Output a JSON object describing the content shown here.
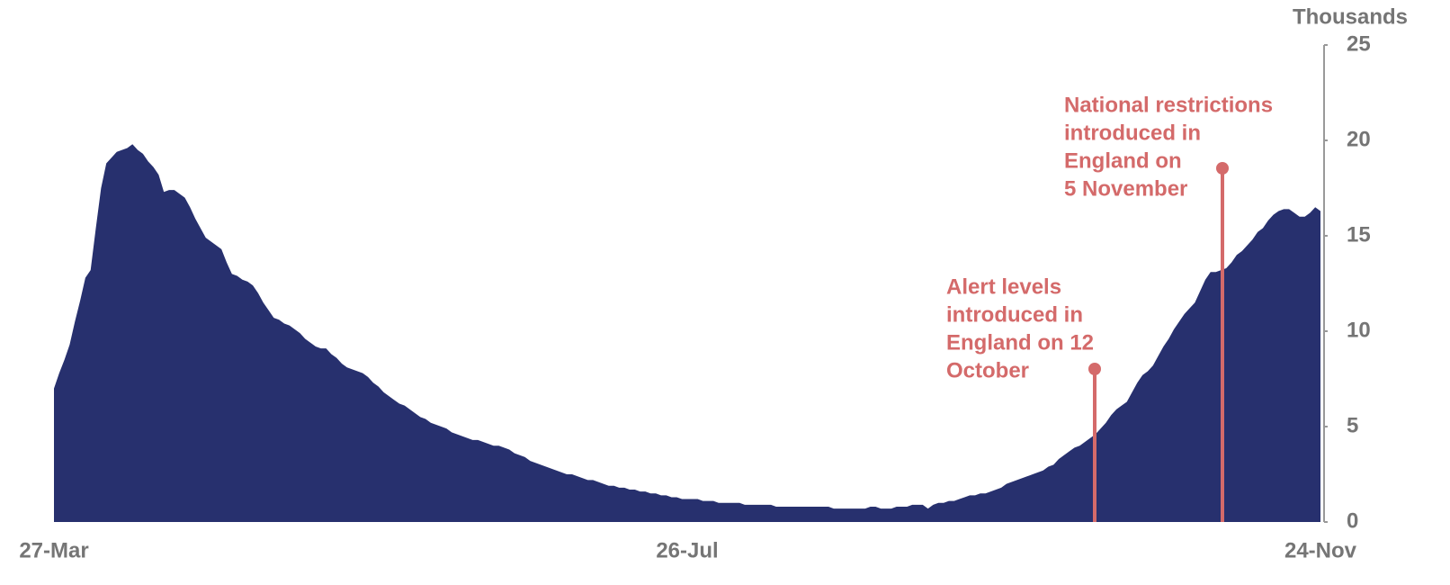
{
  "chart_data": {
    "type": "area",
    "y_label": "Thousands",
    "color": "#27306e",
    "annotation_color": "#d46a6a",
    "categories": [
      "27-Mar",
      null,
      null,
      null,
      null,
      null,
      null,
      null,
      null,
      null,
      null,
      null,
      null,
      null,
      null,
      null,
      null,
      null,
      null,
      null,
      null,
      null,
      null,
      null,
      null,
      null,
      null,
      null,
      null,
      null,
      null,
      null,
      null,
      null,
      null,
      null,
      null,
      null,
      null,
      null,
      null,
      null,
      null,
      null,
      null,
      null,
      null,
      null,
      null,
      null,
      null,
      null,
      null,
      null,
      null,
      null,
      null,
      null,
      null,
      null,
      null,
      null,
      null,
      null,
      null,
      null,
      null,
      null,
      null,
      null,
      null,
      null,
      null,
      null,
      null,
      null,
      null,
      null,
      null,
      null,
      null,
      null,
      null,
      null,
      null,
      null,
      null,
      null,
      null,
      null,
      null,
      null,
      null,
      null,
      null,
      null,
      null,
      null,
      null,
      null,
      null,
      null,
      null,
      null,
      null,
      null,
      null,
      null,
      null,
      null,
      null,
      null,
      null,
      null,
      null,
      null,
      null,
      null,
      null,
      null,
      null,
      "26-Jul",
      null,
      null,
      null,
      null,
      null,
      null,
      null,
      null,
      null,
      null,
      null,
      null,
      null,
      null,
      null,
      null,
      null,
      null,
      null,
      null,
      null,
      null,
      null,
      null,
      null,
      null,
      null,
      null,
      null,
      null,
      null,
      null,
      null,
      null,
      null,
      null,
      null,
      null,
      null,
      null,
      null,
      null,
      null,
      null,
      null,
      null,
      null,
      null,
      null,
      null,
      null,
      null,
      null,
      null,
      null,
      null,
      null,
      null,
      null,
      null,
      null,
      null,
      null,
      null,
      null,
      null,
      null,
      null,
      null,
      null,
      null,
      null,
      null,
      null,
      null,
      null,
      null,
      null,
      null,
      null,
      null,
      null,
      null,
      null,
      null,
      null,
      null,
      null,
      null,
      null,
      null,
      null,
      null,
      null,
      null,
      null,
      null,
      null,
      null,
      null,
      null,
      null,
      null,
      null,
      null,
      null,
      null,
      null,
      null,
      null,
      null,
      null,
      null,
      null,
      null,
      null,
      null,
      null,
      null,
      null,
      "24-Nov"
    ],
    "values": [
      7.0,
      7.8,
      8.5,
      9.3,
      10.5,
      11.6,
      12.8,
      13.2,
      15.4,
      17.5,
      18.8,
      19.1,
      19.4,
      19.5,
      19.6,
      19.8,
      19.5,
      19.3,
      18.9,
      18.6,
      18.2,
      17.3,
      17.4,
      17.4,
      17.2,
      17.0,
      16.5,
      15.9,
      15.4,
      14.9,
      14.7,
      14.5,
      14.3,
      13.6,
      13.0,
      12.9,
      12.7,
      12.6,
      12.4,
      12.0,
      11.5,
      11.1,
      10.7,
      10.6,
      10.4,
      10.3,
      10.1,
      9.9,
      9.6,
      9.4,
      9.2,
      9.1,
      9.1,
      8.8,
      8.6,
      8.3,
      8.1,
      8.0,
      7.9,
      7.8,
      7.6,
      7.3,
      7.1,
      6.8,
      6.6,
      6.4,
      6.2,
      6.1,
      5.9,
      5.7,
      5.5,
      5.4,
      5.2,
      5.1,
      5.0,
      4.9,
      4.7,
      4.6,
      4.5,
      4.4,
      4.3,
      4.3,
      4.2,
      4.1,
      4.0,
      4.0,
      3.9,
      3.8,
      3.6,
      3.5,
      3.4,
      3.2,
      3.1,
      3.0,
      2.9,
      2.8,
      2.7,
      2.6,
      2.5,
      2.5,
      2.4,
      2.3,
      2.2,
      2.2,
      2.1,
      2.0,
      1.9,
      1.9,
      1.8,
      1.8,
      1.7,
      1.7,
      1.6,
      1.6,
      1.5,
      1.5,
      1.4,
      1.4,
      1.3,
      1.3,
      1.2,
      1.2,
      1.2,
      1.2,
      1.1,
      1.1,
      1.1,
      1.0,
      1.0,
      1.0,
      1.0,
      1.0,
      0.9,
      0.9,
      0.9,
      0.9,
      0.9,
      0.9,
      0.8,
      0.8,
      0.8,
      0.8,
      0.8,
      0.8,
      0.8,
      0.8,
      0.8,
      0.8,
      0.8,
      0.7,
      0.7,
      0.7,
      0.7,
      0.7,
      0.7,
      0.7,
      0.8,
      0.8,
      0.7,
      0.7,
      0.7,
      0.8,
      0.8,
      0.8,
      0.9,
      0.9,
      0.9,
      0.7,
      0.9,
      1.0,
      1.0,
      1.1,
      1.1,
      1.2,
      1.3,
      1.4,
      1.4,
      1.5,
      1.5,
      1.6,
      1.7,
      1.8,
      2.0,
      2.1,
      2.2,
      2.3,
      2.4,
      2.5,
      2.6,
      2.7,
      2.9,
      3.0,
      3.3,
      3.5,
      3.7,
      3.9,
      4.0,
      4.2,
      4.4,
      4.6,
      4.9,
      5.2,
      5.6,
      5.9,
      6.1,
      6.3,
      6.8,
      7.3,
      7.7,
      7.9,
      8.2,
      8.7,
      9.2,
      9.6,
      10.1,
      10.5,
      10.9,
      11.2,
      11.5,
      12.1,
      12.7,
      13.1,
      13.1,
      13.2,
      13.3,
      13.6,
      14.0,
      14.2,
      14.5,
      14.8,
      15.2,
      15.4,
      15.8,
      16.1,
      16.3,
      16.4,
      16.4,
      16.2,
      16.0,
      16.0,
      16.2,
      16.5,
      16.3
    ],
    "ylim": [
      0,
      25
    ],
    "yticks": [
      0,
      5,
      10,
      15,
      20,
      25
    ],
    "annotations": [
      {
        "text": [
          "Alert levels",
          "introduced in",
          "England on 12",
          "October"
        ]
      },
      {
        "text": [
          "National restrictions",
          "introduced in",
          "England on",
          "5 November"
        ]
      }
    ]
  }
}
